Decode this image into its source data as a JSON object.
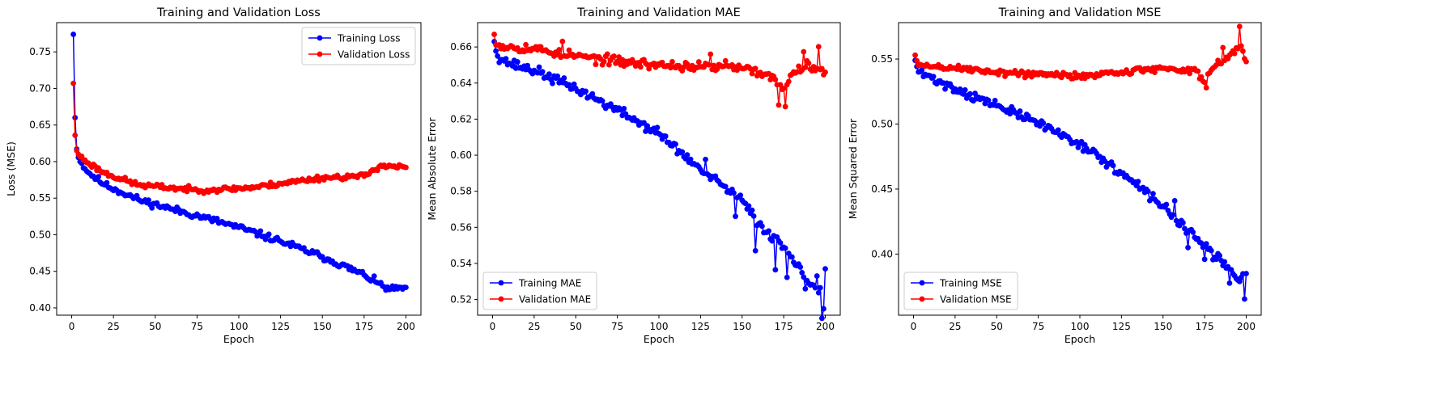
{
  "chart_data": [
    {
      "type": "line",
      "title": "Training and Validation Loss",
      "xlabel": "Epoch",
      "ylabel": "Loss (MSE)",
      "xlim": [
        -9,
        209
      ],
      "ylim": [
        0.39,
        0.79
      ],
      "xticks": [
        0,
        25,
        50,
        75,
        100,
        125,
        150,
        175,
        200
      ],
      "xtick_labels": [
        "0",
        "25",
        "50",
        "75",
        "100",
        "125",
        "150",
        "175",
        "200"
      ],
      "yticks": [
        0.4,
        0.45,
        0.5,
        0.55,
        0.6,
        0.65,
        0.7,
        0.75
      ],
      "ytick_labels": [
        "0.40",
        "0.45",
        "0.50",
        "0.55",
        "0.60",
        "0.65",
        "0.70",
        "0.75"
      ],
      "legend_position": "top-right",
      "grid": false,
      "markers": true,
      "series": [
        {
          "name": "Training Loss",
          "color": "#0000ff",
          "gen": {
            "key": [
              [
                1,
                0.774
              ],
              [
                2,
                0.66
              ],
              [
                3,
                0.617
              ],
              [
                5,
                0.6
              ],
              [
                10,
                0.585
              ],
              [
                20,
                0.568
              ],
              [
                40,
                0.548
              ],
              [
                60,
                0.535
              ],
              [
                80,
                0.523
              ],
              [
                100,
                0.51
              ],
              [
                125,
                0.491
              ],
              [
                150,
                0.47
              ],
              [
                175,
                0.445
              ],
              [
                190,
                0.425
              ],
              [
                200,
                0.428
              ]
            ],
            "noise": 0.005,
            "seed": 11
          }
        },
        {
          "name": "Validation Loss",
          "color": "#ff0000",
          "gen": {
            "key": [
              [
                1,
                0.707
              ],
              [
                2,
                0.636
              ],
              [
                3,
                0.615
              ],
              [
                5,
                0.607
              ],
              [
                10,
                0.598
              ],
              [
                20,
                0.584
              ],
              [
                40,
                0.568
              ],
              [
                60,
                0.564
              ],
              [
                75,
                0.561
              ],
              [
                90,
                0.562
              ],
              [
                110,
                0.565
              ],
              [
                125,
                0.57
              ],
              [
                150,
                0.578
              ],
              [
                175,
                0.58
              ],
              [
                185,
                0.595
              ],
              [
                200,
                0.592
              ]
            ],
            "noise": 0.004,
            "seed": 23
          }
        }
      ]
    },
    {
      "type": "line",
      "title": "Training and Validation MAE",
      "xlabel": "Epoch",
      "ylabel": "Mean Absolute Error",
      "xlim": [
        -9,
        209
      ],
      "ylim": [
        0.5113,
        0.6735
      ],
      "xticks": [
        0,
        25,
        50,
        75,
        100,
        125,
        150,
        175,
        200
      ],
      "xtick_labels": [
        "0",
        "25",
        "50",
        "75",
        "100",
        "125",
        "150",
        "175",
        "200"
      ],
      "yticks": [
        0.52,
        0.54,
        0.56,
        0.58,
        0.6,
        0.62,
        0.64,
        0.66
      ],
      "ytick_labels": [
        "0.52",
        "0.54",
        "0.56",
        "0.58",
        "0.60",
        "0.62",
        "0.64",
        "0.66"
      ],
      "legend_position": "bottom-left",
      "grid": false,
      "markers": true,
      "series": [
        {
          "name": "Training MAE",
          "color": "#0000ff",
          "gen": {
            "key": [
              [
                1,
                0.663
              ],
              [
                3,
                0.655
              ],
              [
                10,
                0.651
              ],
              [
                25,
                0.647
              ],
              [
                50,
                0.637
              ],
              [
                75,
                0.625
              ],
              [
                100,
                0.612
              ],
              [
                125,
                0.592
              ],
              [
                150,
                0.575
              ],
              [
                160,
                0.562
              ],
              [
                175,
                0.549
              ],
              [
                185,
                0.538
              ],
              [
                195,
                0.523
              ],
              [
                200,
                0.525
              ]
            ],
            "noise": 0.003,
            "spikes": [
              [
                128,
                0.005
              ],
              [
                146,
                -0.012
              ],
              [
                158,
                -0.018
              ],
              [
                170,
                -0.016
              ],
              [
                177,
                -0.014
              ],
              [
                188,
                -0.008
              ],
              [
                195,
                0.01
              ],
              [
                198,
                -0.013
              ],
              [
                199,
                -0.008
              ],
              [
                200,
                0.012
              ]
            ],
            "seed": 37
          }
        },
        {
          "name": "Validation MAE",
          "color": "#ff0000",
          "gen": {
            "key": [
              [
                1,
                0.667
              ],
              [
                3,
                0.661
              ],
              [
                25,
                0.659
              ],
              [
                50,
                0.655
              ],
              [
                75,
                0.652
              ],
              [
                100,
                0.65
              ],
              [
                125,
                0.649
              ],
              [
                150,
                0.648
              ],
              [
                165,
                0.645
              ],
              [
                175,
                0.637
              ],
              [
                180,
                0.645
              ],
              [
                190,
                0.651
              ],
              [
                200,
                0.646
              ]
            ],
            "noise": 0.003,
            "spikes": [
              [
                42,
                0.004
              ],
              [
                131,
                0.008
              ],
              [
                140,
                0.006
              ],
              [
                172,
                -0.01
              ],
              [
                176,
                -0.011
              ],
              [
                187,
                0.009
              ],
              [
                196,
                0.014
              ]
            ],
            "seed": 53
          }
        }
      ]
    },
    {
      "type": "line",
      "title": "Training and Validation MSE",
      "xlabel": "Epoch",
      "ylabel": "Mean Squared Error",
      "xlim": [
        -9,
        209
      ],
      "ylim": [
        0.353,
        0.578
      ],
      "xticks": [
        0,
        25,
        50,
        75,
        100,
        125,
        150,
        175,
        200
      ],
      "xtick_labels": [
        "0",
        "25",
        "50",
        "75",
        "100",
        "125",
        "150",
        "175",
        "200"
      ],
      "yticks": [
        0.4,
        0.45,
        0.5,
        0.55
      ],
      "ytick_labels": [
        "0.40",
        "0.45",
        "0.50",
        "0.55"
      ],
      "legend_position": "bottom-left",
      "grid": false,
      "markers": true,
      "series": [
        {
          "name": "Training MSE",
          "color": "#0000ff",
          "gen": {
            "key": [
              [
                1,
                0.549
              ],
              [
                3,
                0.54
              ],
              [
                15,
                0.533
              ],
              [
                25,
                0.527
              ],
              [
                50,
                0.514
              ],
              [
                75,
                0.501
              ],
              [
                100,
                0.485
              ],
              [
                125,
                0.462
              ],
              [
                150,
                0.437
              ],
              [
                165,
                0.418
              ],
              [
                175,
                0.405
              ],
              [
                185,
                0.395
              ],
              [
                195,
                0.38
              ],
              [
                200,
                0.385
              ]
            ],
            "noise": 0.004,
            "spikes": [
              [
                157,
                0.012
              ],
              [
                165,
                -0.013
              ],
              [
                175,
                -0.009
              ],
              [
                190,
                -0.01
              ],
              [
                199,
                -0.018
              ]
            ],
            "seed": 71
          }
        },
        {
          "name": "Validation MSE",
          "color": "#ff0000",
          "gen": {
            "key": [
              [
                1,
                0.553
              ],
              [
                3,
                0.545
              ],
              [
                25,
                0.543
              ],
              [
                50,
                0.54
              ],
              [
                75,
                0.538
              ],
              [
                100,
                0.537
              ],
              [
                125,
                0.54
              ],
              [
                150,
                0.543
              ],
              [
                170,
                0.541
              ],
              [
                175,
                0.532
              ],
              [
                180,
                0.543
              ],
              [
                190,
                0.553
              ],
              [
                197,
                0.56
              ],
              [
                200,
                0.548
              ]
            ],
            "noise": 0.003,
            "spikes": [
              [
                176,
                -0.008
              ],
              [
                186,
                0.008
              ],
              [
                196,
                0.014
              ]
            ],
            "seed": 89
          }
        }
      ]
    }
  ]
}
